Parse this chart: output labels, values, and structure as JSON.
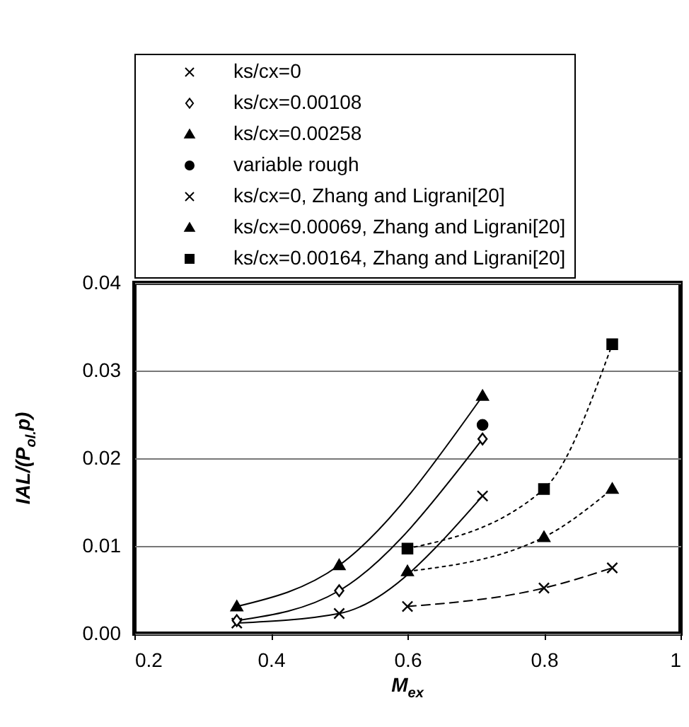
{
  "chart_data": {
    "type": "line",
    "xlabel": "M$_{ex}$",
    "ylabel": "IAL/(P$_{ol.}$p)",
    "xlim": [
      0.2,
      1
    ],
    "xticks": [
      0.2,
      0.4,
      0.6,
      0.8,
      1
    ],
    "ylim": [
      0,
      0.04
    ],
    "yticks": [
      {
        "value": 0,
        "label": "0.00"
      },
      {
        "value": 0.01,
        "label": "0.01"
      },
      {
        "value": 0.02,
        "label": "0.02"
      },
      {
        "value": 0.03,
        "label": "0.03"
      },
      {
        "value": 0.04,
        "label": "0.04"
      }
    ],
    "grid": "y",
    "legend": "top",
    "series": [
      {
        "name": "ks/cx=0",
        "color": "#000000",
        "marker": "cross",
        "line_style": "solid",
        "x": [
          0.35,
          0.5,
          0.71
        ],
        "values": [
          0.0012,
          0.0023,
          0.0157
        ]
      },
      {
        "name": "ks/cx=0.00108",
        "color": "#000000",
        "marker": "diamond",
        "line_style": "solid",
        "x": [
          0.35,
          0.5,
          0.71
        ],
        "values": [
          0.0015,
          0.0049,
          0.0222
        ]
      },
      {
        "name": "ks/cx=0.00258",
        "color": "#000000",
        "marker": "triangle",
        "line_style": "solid",
        "x": [
          0.35,
          0.5,
          0.71
        ],
        "values": [
          0.0031,
          0.0078,
          0.0271
        ]
      },
      {
        "name": "variable rough",
        "type": "scatter",
        "color": "#000000",
        "marker": "circle",
        "x": [
          0.71
        ],
        "values": [
          0.0238
        ]
      },
      {
        "name": "ks/cx=0, Zhang and Ligrani[20]",
        "color": "#000000",
        "marker": "cross",
        "line_style": "dashed",
        "x": [
          0.6,
          0.8,
          0.9
        ],
        "values": [
          0.0031,
          0.0052,
          0.0075
        ]
      },
      {
        "name": "ks/cx=0.00069, Zhang and Ligrani[20]",
        "color": "#000000",
        "marker": "triangle",
        "line_style": "dotted",
        "x": [
          0.6,
          0.8,
          0.9
        ],
        "values": [
          0.0071,
          0.011,
          0.0165
        ]
      },
      {
        "name": "ks/cx=0.00164, Zhang and Ligrani[20]",
        "color": "#000000",
        "marker": "square",
        "line_style": "dotted",
        "x": [
          0.6,
          0.8,
          0.9
        ],
        "values": [
          0.0097,
          0.0165,
          0.033
        ]
      }
    ]
  }
}
